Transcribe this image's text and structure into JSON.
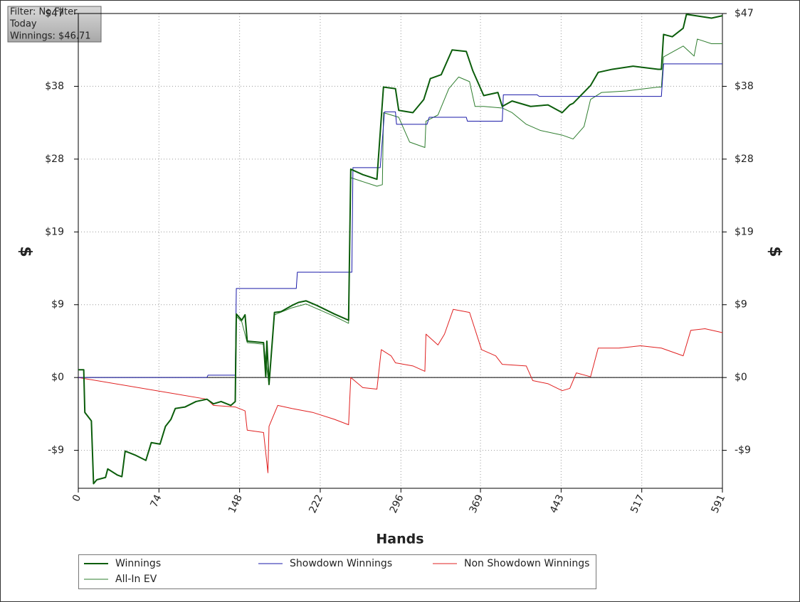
{
  "chart_data": {
    "type": "line",
    "info": [
      "Filter: No Filter",
      "Today",
      "Winnings: $46.71"
    ],
    "x_label": "Hands",
    "y_label": "$",
    "y2_label": "$",
    "xlim": [
      0,
      591
    ],
    "xticks": [
      0,
      74,
      148,
      222,
      296,
      369,
      443,
      517,
      591
    ],
    "ylim": [
      -14.3,
      47
    ],
    "yticks": [
      {
        "value": -9.4,
        "label": "-$9"
      },
      {
        "value": 0,
        "label": "$0"
      },
      {
        "value": 9.4,
        "label": "$9"
      },
      {
        "value": 18.8,
        "label": "$19"
      },
      {
        "value": 28.2,
        "label": "$28"
      },
      {
        "value": 37.6,
        "label": "$38"
      },
      {
        "value": 47,
        "label": "$47"
      }
    ],
    "grid": true,
    "series": [
      {
        "name": "Winnings",
        "color": "#0b5d0b",
        "width": 2,
        "x": [
          0,
          5,
          6,
          12,
          14,
          17,
          25,
          27,
          36,
          40,
          43,
          52,
          62,
          67,
          75,
          80,
          85,
          89,
          98,
          108,
          118,
          124,
          131,
          140,
          144,
          145,
          150,
          153,
          155,
          170,
          172,
          173,
          175,
          180,
          186,
          196,
          202,
          209,
          219,
          235,
          248,
          250,
          261,
          274,
          280,
          291,
          294,
          307,
          317,
          323,
          333,
          343,
          356,
          362,
          372,
          385,
          389,
          398,
          415,
          431,
          444,
          451,
          454,
          470,
          477,
          490,
          509,
          532,
          535,
          537,
          545,
          555,
          558,
          581,
          591
        ],
        "values": [
          1.0,
          1.0,
          -4.5,
          -5.6,
          -13.7,
          -13.2,
          -12.9,
          -11.8,
          -12.6,
          -12.8,
          -9.5,
          -10.0,
          -10.7,
          -8.4,
          -8.6,
          -6.3,
          -5.4,
          -4.0,
          -3.8,
          -3.1,
          -2.8,
          -3.4,
          -3.1,
          -3.6,
          -3.1,
          8.2,
          7.4,
          8.1,
          4.7,
          4.5,
          0.1,
          4.7,
          -0.9,
          8.4,
          8.5,
          9.3,
          9.7,
          9.9,
          9.3,
          8.2,
          7.4,
          26.9,
          26.2,
          25.6,
          37.5,
          37.3,
          34.5,
          34.2,
          35.9,
          38.6,
          39.1,
          42.3,
          42.1,
          39.6,
          36.4,
          36.8,
          35.0,
          35.7,
          35.0,
          35.2,
          34.2,
          35.2,
          35.4,
          37.7,
          39.4,
          39.8,
          40.2,
          39.8,
          39.8,
          44.3,
          44.0,
          45.1,
          46.9,
          46.4,
          46.71
        ]
      },
      {
        "name": "Showdown Winnings",
        "color": "#1a1aa8",
        "width": 1,
        "x": [
          0,
          118,
          119,
          144,
          145,
          200,
          201,
          251,
          252,
          277,
          279,
          281,
          291,
          292,
          320,
          322,
          356,
          357,
          389,
          390,
          421,
          423,
          535,
          537,
          591
        ],
        "values": [
          0,
          0,
          0.3,
          0.3,
          11.5,
          11.5,
          13.6,
          13.6,
          27.1,
          27.1,
          30.7,
          34.3,
          34.3,
          32.7,
          32.7,
          33.6,
          33.6,
          33.1,
          33.1,
          36.5,
          36.5,
          36.3,
          36.3,
          40.5,
          40.5
        ]
      },
      {
        "name": "Non Showdown Winnings",
        "color": "#e02020",
        "width": 1,
        "x": [
          0,
          118,
          124,
          144,
          153,
          155,
          170,
          174,
          175,
          183,
          196,
          215,
          235,
          248,
          250,
          261,
          274,
          278,
          287,
          291,
          307,
          318,
          319,
          330,
          336,
          344,
          359,
          370,
          383,
          389,
          411,
          417,
          431,
          444,
          451,
          457,
          470,
          477,
          496,
          516,
          535,
          555,
          562,
          575,
          591
        ],
        "values": [
          0,
          -2.8,
          -3.6,
          -3.8,
          -4.3,
          -6.8,
          -7.1,
          -12.3,
          -6.3,
          -3.6,
          -4.0,
          -4.5,
          -5.4,
          -6.1,
          0,
          -1.3,
          -1.5,
          3.6,
          2.8,
          1.9,
          1.5,
          0.8,
          5.6,
          4.2,
          5.6,
          8.8,
          8.4,
          3.6,
          2.8,
          1.7,
          1.5,
          -0.4,
          -0.8,
          -1.7,
          -1.4,
          0.6,
          0.1,
          3.8,
          3.8,
          4.1,
          3.8,
          2.8,
          6.1,
          6.3,
          5.8
        ]
      },
      {
        "name": "All-In EV",
        "color": "#2e7d2e",
        "width": 1,
        "x": [
          0,
          5,
          6,
          12,
          14,
          17,
          25,
          27,
          36,
          40,
          43,
          52,
          62,
          67,
          75,
          80,
          85,
          89,
          98,
          108,
          118,
          124,
          131,
          140,
          144,
          145,
          150,
          155,
          170,
          175,
          180,
          196,
          209,
          235,
          248,
          250,
          274,
          279,
          280,
          294,
          304,
          318,
          319,
          330,
          340,
          349,
          359,
          364,
          372,
          389,
          398,
          411,
          424,
          444,
          454,
          464,
          470,
          480,
          503,
          532,
          535,
          537,
          555,
          562,
          565,
          568,
          581,
          591
        ],
        "values": [
          1.0,
          1.0,
          -4.5,
          -5.6,
          -13.7,
          -13.2,
          -12.9,
          -11.8,
          -12.6,
          -12.8,
          -9.5,
          -10.0,
          -10.7,
          -8.4,
          -8.6,
          -6.3,
          -5.4,
          -4.0,
          -3.8,
          -3.1,
          -2.8,
          -3.4,
          -3.1,
          -3.6,
          -3.1,
          7.9,
          7.2,
          4.5,
          4.3,
          -0.9,
          8.1,
          9.0,
          9.5,
          7.9,
          7.0,
          25.8,
          24.7,
          24.9,
          34.2,
          33.6,
          30.4,
          29.7,
          33.1,
          33.9,
          37.3,
          38.8,
          38.2,
          35.0,
          35.0,
          34.8,
          34.2,
          32.7,
          31.9,
          31.3,
          30.8,
          32.4,
          35.9,
          36.8,
          37.0,
          37.5,
          37.5,
          41.4,
          42.8,
          41.9,
          41.5,
          43.7,
          43.1,
          43.1
        ]
      }
    ]
  }
}
